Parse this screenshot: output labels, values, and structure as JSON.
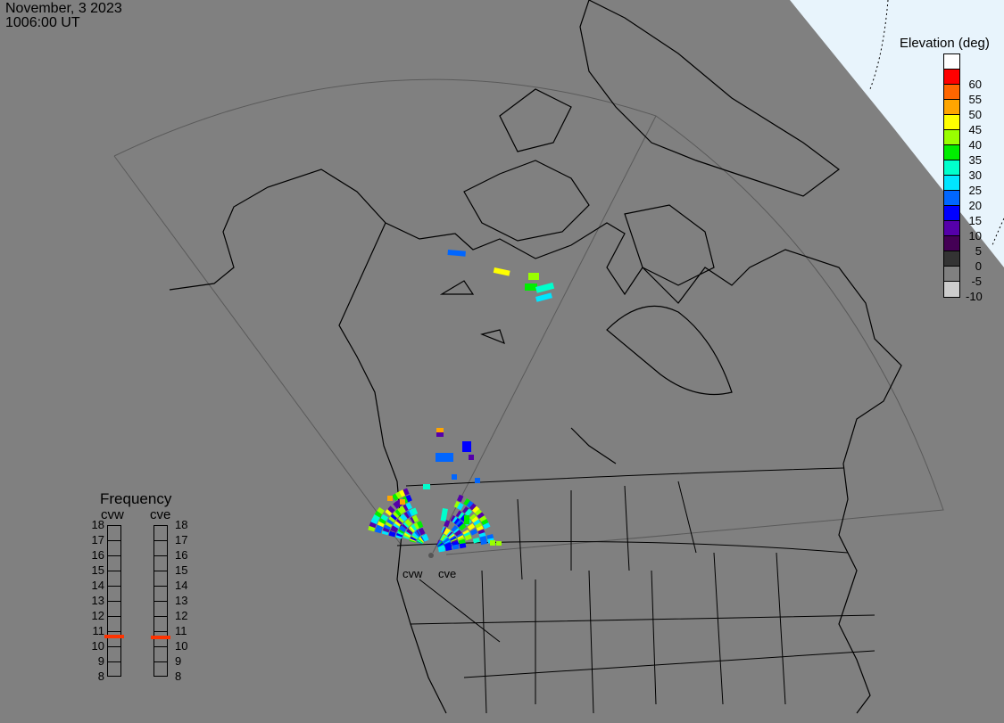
{
  "header": {
    "date": "November, 3 2023",
    "time": "1006:00 UT"
  },
  "elevation_legend": {
    "title": "Elevation (deg)",
    "levels": [
      {
        "color": "#ffffff",
        "label": ""
      },
      {
        "color": "#ff0000",
        "label": "60"
      },
      {
        "color": "#ff6600",
        "label": "55"
      },
      {
        "color": "#ffa500",
        "label": "50"
      },
      {
        "color": "#ffff00",
        "label": "45"
      },
      {
        "color": "#99ff00",
        "label": "40"
      },
      {
        "color": "#00ee00",
        "label": "35"
      },
      {
        "color": "#00ffcc",
        "label": "30"
      },
      {
        "color": "#00e5ff",
        "label": "25"
      },
      {
        "color": "#0066ff",
        "label": "20"
      },
      {
        "color": "#0000ff",
        "label": "15"
      },
      {
        "color": "#5500aa",
        "label": "10"
      },
      {
        "color": "#440055",
        "label": "5"
      },
      {
        "color": "#333333",
        "label": "0"
      },
      {
        "color": "#808080",
        "label": "-5"
      },
      {
        "color": "#cccccc",
        "label": "-10"
      }
    ]
  },
  "frequency_panel": {
    "title": "Frequency",
    "unit_ticks": [
      "18",
      "17",
      "16",
      "15",
      "14",
      "13",
      "12",
      "11",
      "10",
      "9",
      "8"
    ],
    "radars": [
      {
        "name": "cvw",
        "frequency_mhz": 10.65
      },
      {
        "name": "cve",
        "frequency_mhz": 10.6
      }
    ],
    "marker_color": "#ff3300"
  },
  "radar_sites": {
    "west": "cvw",
    "east": "cve"
  },
  "colors": {
    "background": "#808080",
    "daylight": "#e8f4fc",
    "land_outline": "#000000",
    "fov_outline": "#5a5a5a"
  }
}
